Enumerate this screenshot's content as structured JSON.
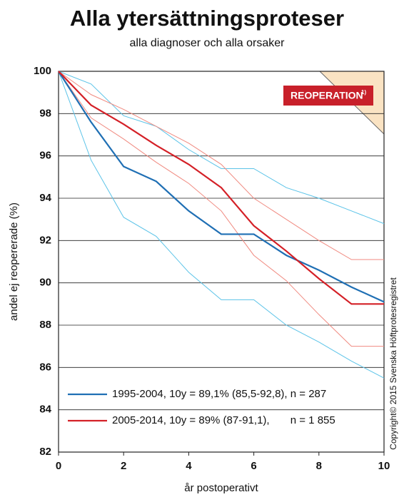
{
  "chart_data": {
    "type": "line",
    "title": "Alla ytersättningsproteser",
    "subtitle": "alla diagnoser och alla orsaker",
    "x_label": "år postoperativt",
    "y_label": "andel ej reopererade (%)",
    "annotation": "REOPERATION",
    "annotation_note": "1)",
    "copyright": "Copyright© 2015 Svenska Höftprotesregistret",
    "x": [
      0,
      1,
      2,
      3,
      4,
      5,
      6,
      7,
      8,
      9,
      10
    ],
    "series": [
      {
        "name": "1995-2004, 10y = 89,1% (85,5-92,8), n = 287",
        "color": "#1f6fb4",
        "ci_color": "#5bc3e8",
        "values": [
          100,
          97.6,
          95.5,
          94.8,
          93.4,
          92.3,
          92.3,
          91.3,
          90.6,
          89.8,
          89.1
        ],
        "ci_upper": [
          100,
          99.4,
          97.9,
          97.4,
          96.3,
          95.4,
          95.4,
          94.5,
          94.0,
          93.4,
          92.8
        ],
        "ci_lower": [
          100,
          95.8,
          93.1,
          92.2,
          90.5,
          89.2,
          89.2,
          88.0,
          87.2,
          86.3,
          85.5
        ]
      },
      {
        "name": "2005-2014, 10y = 89% (87-91,1),       n = 1 855",
        "color": "#d42027",
        "ci_color": "#f08a80",
        "values": [
          100,
          98.4,
          97.5,
          96.5,
          95.6,
          94.5,
          92.7,
          91.5,
          90.2,
          89.0,
          89.0
        ],
        "ci_upper": [
          100,
          98.9,
          98.2,
          97.4,
          96.6,
          95.6,
          94.0,
          93.0,
          92.0,
          91.1,
          91.1
        ],
        "ci_lower": [
          100,
          97.8,
          96.8,
          95.7,
          94.7,
          93.4,
          91.3,
          90.1,
          88.5,
          87.0,
          87.0
        ]
      }
    ],
    "xlim": [
      0,
      10
    ],
    "xticks": [
      0,
      2,
      4,
      6,
      8,
      10
    ],
    "ylim": [
      82,
      100
    ],
    "yticks": [
      82,
      84,
      86,
      88,
      90,
      92,
      94,
      96,
      98,
      100
    ],
    "grid": true
  }
}
